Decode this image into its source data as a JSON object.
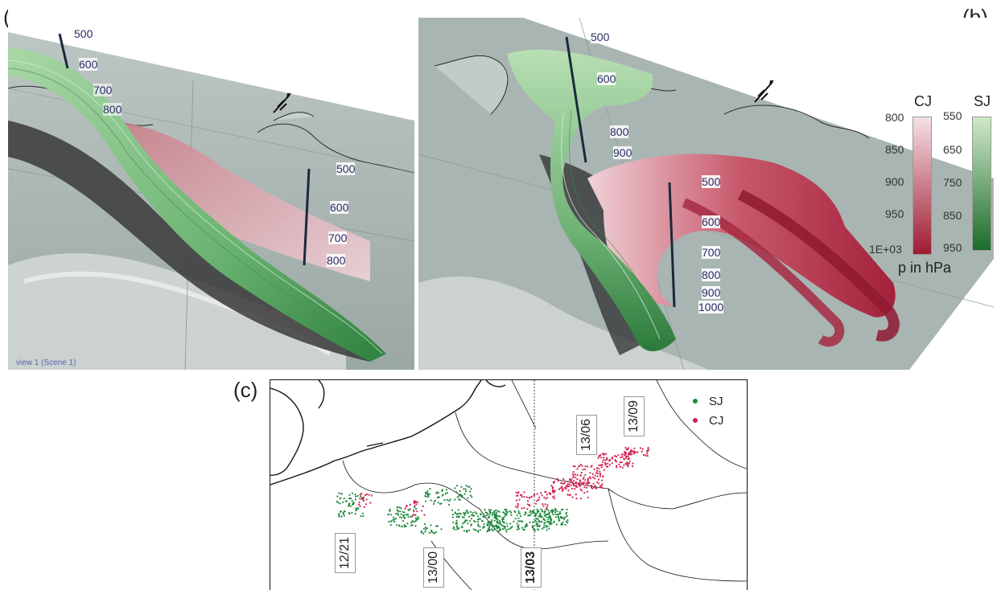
{
  "panels": {
    "a": {
      "label": "(a)",
      "view_note": "view 1 (Scene 1)",
      "pressure_ticks_left": [
        "500",
        "600",
        "700",
        "800"
      ],
      "pressure_ticks_right": [
        "500",
        "600",
        "700",
        "800"
      ]
    },
    "b": {
      "label": "(b)",
      "pressure_ticks_upper": [
        "500",
        "600",
        "800",
        "900"
      ],
      "pressure_ticks_lower": [
        "500",
        "600",
        "700",
        "800",
        "900",
        "1000"
      ]
    },
    "c": {
      "label": "(c)"
    }
  },
  "colorbars": {
    "cj": {
      "title": "CJ",
      "ticks": [
        "800",
        "850",
        "900",
        "950",
        "1E+03"
      ],
      "color_top": "#f6e1e4",
      "color_bottom": "#9e1b32"
    },
    "sj": {
      "title": "SJ",
      "ticks": [
        "550",
        "650",
        "750",
        "850",
        "950"
      ],
      "color_top": "#cfe9c9",
      "color_bottom": "#1c6b2a"
    },
    "axis_label": "p in hPa"
  },
  "legend": {
    "items": [
      {
        "name": "SJ",
        "color": "#1e8a3c"
      },
      {
        "name": "CJ",
        "color": "#d6204f"
      }
    ]
  },
  "time_labels": [
    {
      "text": "12/21",
      "bold": false
    },
    {
      "text": "13/00",
      "bold": false
    },
    {
      "text": "13/03",
      "bold": true
    },
    {
      "text": "13/06",
      "bold": false
    },
    {
      "text": "13/09",
      "bold": false
    }
  ],
  "colors": {
    "sj": "#5fae6a",
    "cj": "#d88f9a",
    "shadow": "#3a3a3a",
    "terrain": "#aeb9b6"
  }
}
